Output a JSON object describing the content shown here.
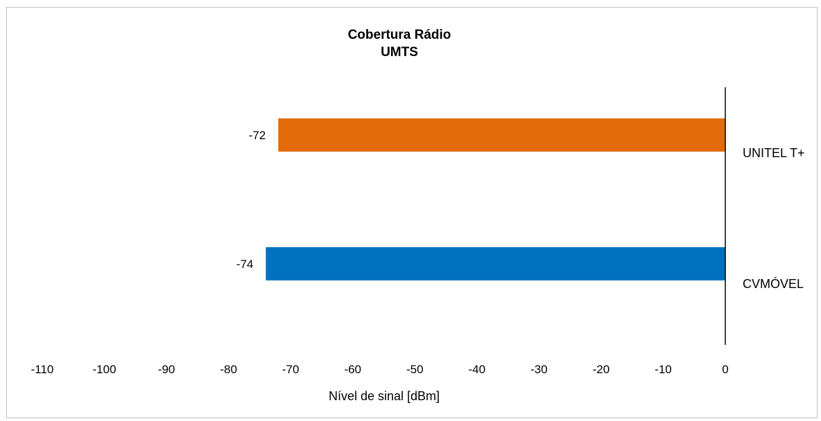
{
  "chart_data": {
    "type": "bar",
    "orientation": "horizontal",
    "title": [
      "Cobertura Rádio",
      "UMTS"
    ],
    "xlabel": "Nível de sinal [dBm]",
    "ylabel": "",
    "xlim": [
      -110,
      0
    ],
    "xticks": [
      -110,
      -100,
      -90,
      -80,
      -70,
      -60,
      -50,
      -40,
      -30,
      -20,
      -10,
      0
    ],
    "xtick_labels": [
      "-110",
      "-100",
      "-90",
      "-80",
      "-70",
      "-60",
      "-50",
      "-40",
      "-30",
      "-20",
      "-10",
      "0"
    ],
    "grid": false,
    "legend": "none",
    "categories": [
      "UNITEL T+",
      "CVMÓVEL"
    ],
    "values": [
      -72,
      -74
    ],
    "data_labels": [
      "-72",
      "-74"
    ],
    "colors": [
      "#E36C0A",
      "#0070C0"
    ]
  }
}
